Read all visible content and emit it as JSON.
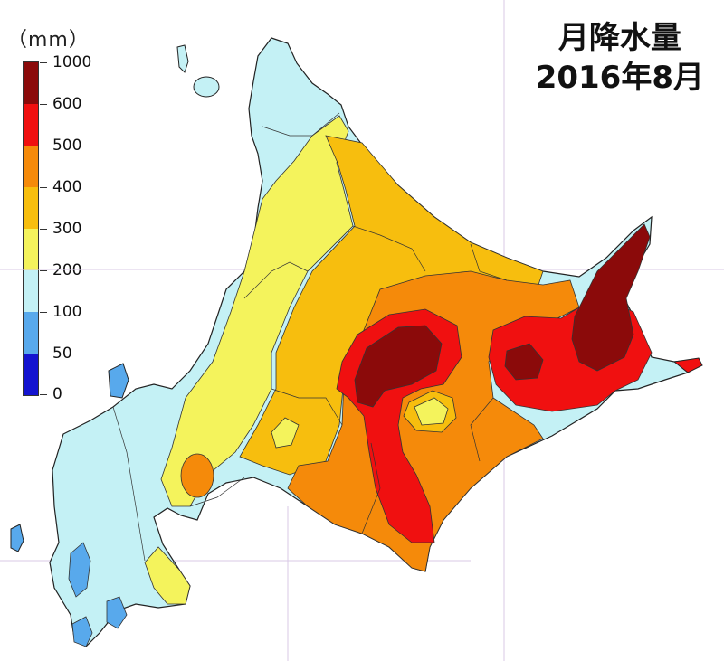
{
  "map": {
    "title_line1": "月降水量",
    "title_line2": "2016年8月",
    "legend_unit": "（mm）"
  },
  "legend": {
    "ticks": [
      "1000",
      "600",
      "500",
      "400",
      "300",
      "200",
      "100",
      "50",
      "0"
    ],
    "bands": [
      {
        "range": "600-1000",
        "color": "#8b0a0a"
      },
      {
        "range": "500-600",
        "color": "#f01010"
      },
      {
        "range": "400-500",
        "color": "#f58a0a"
      },
      {
        "range": "300-400",
        "color": "#f7be0e"
      },
      {
        "range": "200-300",
        "color": "#f4f35c"
      },
      {
        "range": "100-200",
        "color": "#c4f1f5"
      },
      {
        "range": "50-100",
        "color": "#58a9ec"
      },
      {
        "range": "0-50",
        "color": "#1414d0"
      }
    ]
  }
}
